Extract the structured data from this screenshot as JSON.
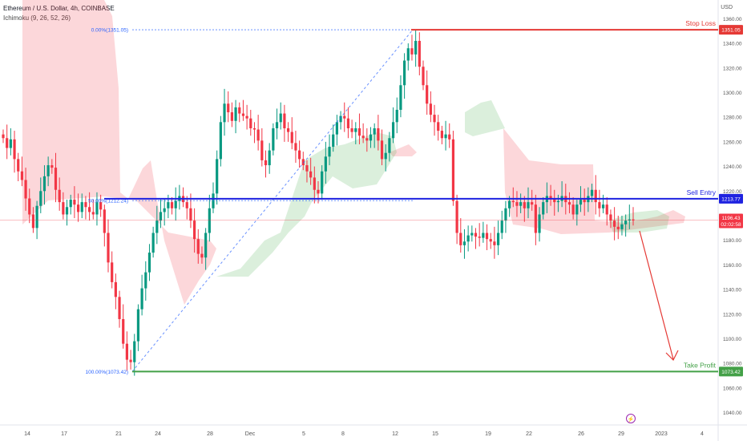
{
  "header": {
    "symbol": "Ethereum / U.S. Dollar, 4h, COINBASE",
    "indicator": "Ichimoku (9, 26, 52, 26)"
  },
  "currency": "USD",
  "chart_data": {
    "type": "candlestick",
    "x_ticks": [
      "14",
      "17",
      "21",
      "24",
      "28",
      "Dec",
      "5",
      "8",
      "12",
      "15",
      "19",
      "22",
      "26",
      "29",
      "2023",
      "4"
    ],
    "y_ticks": [
      1040,
      1060,
      1080,
      1100,
      1120,
      1140,
      1160,
      1180,
      1200,
      1220,
      1240,
      1260,
      1280,
      1300,
      1320,
      1340,
      1360
    ],
    "ylim": [
      1030,
      1370
    ],
    "fib_levels": [
      {
        "label": "0.00%(1351.05)",
        "value": 1351.05
      },
      {
        "label": "50.00%(1212.24)",
        "value": 1212.24
      },
      {
        "label": "100.00%(1073.42)",
        "value": 1073.42
      }
    ],
    "levels": [
      {
        "name": "Stop Loss",
        "value": 1351.05,
        "tag": "1351.05",
        "color": "#e53935"
      },
      {
        "name": "Sell Entry",
        "value": 1213.77,
        "tag": "1213.77",
        "color": "#1e22e0"
      },
      {
        "name": "Take Profit",
        "value": 1073.42,
        "tag": "1073.42",
        "color": "#43a047"
      }
    ],
    "current_price": {
      "value": 1196.43,
      "tag": "1196.43",
      "countdown": "02:02:58",
      "color": "#f23645"
    },
    "closes": [
      1263,
      1255,
      1262,
      1246,
      1236,
      1229,
      1214,
      1201,
      1190,
      1208,
      1220,
      1232,
      1241,
      1239,
      1221,
      1211,
      1201,
      1207,
      1213,
      1209,
      1203,
      1211,
      1207,
      1203,
      1201,
      1211,
      1205,
      1186,
      1162,
      1146,
      1134,
      1116,
      1096,
      1083,
      1081,
      1098,
      1124,
      1141,
      1154,
      1170,
      1186,
      1196,
      1203,
      1206,
      1211,
      1206,
      1212,
      1216,
      1211,
      1206,
      1196,
      1181,
      1169,
      1166,
      1186,
      1206,
      1218,
      1246,
      1276,
      1291,
      1284,
      1277,
      1288,
      1283,
      1281,
      1279,
      1271,
      1270,
      1261,
      1245,
      1241,
      1253,
      1271,
      1276,
      1283,
      1271,
      1268,
      1259,
      1253,
      1246,
      1241,
      1236,
      1231,
      1221,
      1218,
      1236,
      1248,
      1256,
      1266,
      1276,
      1281,
      1279,
      1271,
      1268,
      1271,
      1265,
      1263,
      1261,
      1266,
      1271,
      1261,
      1246,
      1251,
      1263,
      1276,
      1286,
      1306,
      1326,
      1336,
      1331,
      1342,
      1321,
      1306,
      1291,
      1282,
      1276,
      1269,
      1263,
      1266,
      1262,
      1212,
      1186,
      1176,
      1179,
      1184,
      1186,
      1183,
      1182,
      1186,
      1181,
      1179,
      1176,
      1186,
      1196,
      1206,
      1212,
      1211,
      1208,
      1211,
      1206,
      1211,
      1209,
      1186,
      1201,
      1211,
      1216,
      1214,
      1211,
      1212,
      1216,
      1211,
      1209,
      1201,
      1209,
      1213,
      1211,
      1216,
      1221,
      1211,
      1206,
      1209,
      1201,
      1196,
      1191,
      1189,
      1193,
      1196,
      1197,
      1196
    ]
  }
}
